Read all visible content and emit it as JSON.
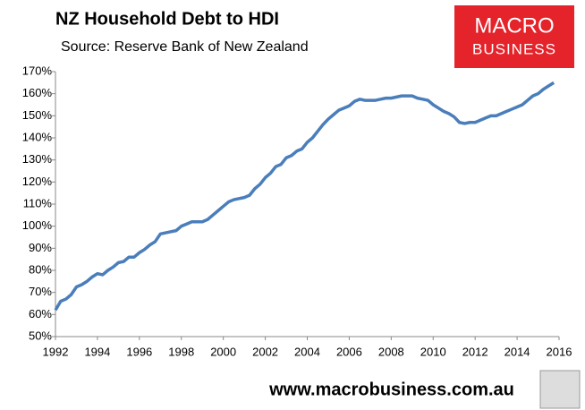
{
  "chart_data": {
    "type": "line",
    "title": "NZ Household Debt to HDI",
    "subtitle": "Source: Reserve Bank of New Zealand",
    "logo_text": [
      "MACRO",
      "BUSINESS"
    ],
    "footer": "www.macrobusiness.com.au",
    "x": [
      1992,
      1992.25,
      1992.5,
      1992.75,
      1993,
      1993.25,
      1993.5,
      1993.75,
      1994,
      1994.25,
      1994.5,
      1994.75,
      1995,
      1995.25,
      1995.5,
      1995.75,
      1996,
      1996.25,
      1996.5,
      1996.75,
      1997,
      1997.25,
      1997.5,
      1997.75,
      1998,
      1998.25,
      1998.5,
      1998.75,
      1999,
      1999.25,
      1999.5,
      1999.75,
      2000,
      2000.25,
      2000.5,
      2000.75,
      2001,
      2001.25,
      2001.5,
      2001.75,
      2002,
      2002.25,
      2002.5,
      2002.75,
      2003,
      2003.25,
      2003.5,
      2003.75,
      2004,
      2004.25,
      2004.5,
      2004.75,
      2005,
      2005.25,
      2005.5,
      2005.75,
      2006,
      2006.25,
      2006.5,
      2006.75,
      2007,
      2007.25,
      2007.5,
      2007.75,
      2008,
      2008.25,
      2008.5,
      2008.75,
      2009,
      2009.25,
      2009.5,
      2009.75,
      2010,
      2010.25,
      2010.5,
      2010.75,
      2011,
      2011.25,
      2011.5,
      2011.75,
      2012,
      2012.25,
      2012.5,
      2012.75,
      2013,
      2013.25,
      2013.5,
      2013.75,
      2014,
      2014.25,
      2014.5,
      2014.75,
      2015,
      2015.25,
      2015.5,
      2015.75
    ],
    "series": [
      {
        "color": "#4a7ebb",
        "values": [
          62,
          66,
          67,
          69,
          72.5,
          73.5,
          75,
          77,
          78.5,
          78,
          80,
          81.5,
          83.5,
          84,
          86,
          86,
          88,
          89.5,
          91.5,
          93,
          96.5,
          97,
          97.5,
          98,
          100,
          101,
          102,
          102,
          102,
          103,
          105,
          107,
          109,
          111,
          112,
          112.5,
          113,
          114,
          117,
          119,
          122,
          124,
          127,
          128,
          131,
          132,
          134,
          135,
          138,
          140,
          143,
          146,
          148.5,
          150.5,
          152.5,
          153.5,
          154.5,
          156.5,
          157.5,
          157,
          157,
          157,
          157.5,
          158,
          158,
          158.5,
          159,
          159,
          159,
          158,
          157.5,
          157,
          155,
          153.5,
          152,
          151,
          149.5,
          147,
          146.5,
          147,
          147,
          148,
          149,
          150,
          150,
          151,
          152,
          153,
          154,
          155,
          157,
          159,
          160,
          162,
          163.5,
          165
        ]
      }
    ],
    "xlim": [
      1992,
      2016
    ],
    "xticks": [
      1992,
      1994,
      1996,
      1998,
      2000,
      2002,
      2004,
      2006,
      2008,
      2010,
      2012,
      2014,
      2016
    ],
    "ylim": [
      50,
      170
    ],
    "yticks": [
      {
        "value": 50,
        "label": "50%"
      },
      {
        "value": 60,
        "label": "60%"
      },
      {
        "value": 70,
        "label": "70%"
      },
      {
        "value": 80,
        "label": "80%"
      },
      {
        "value": 90,
        "label": "90%"
      },
      {
        "value": 100,
        "label": "100%"
      },
      {
        "value": 110,
        "label": "110%"
      },
      {
        "value": 120,
        "label": "120%"
      },
      {
        "value": 130,
        "label": "130%"
      },
      {
        "value": 140,
        "label": "140%"
      },
      {
        "value": 150,
        "label": "150%"
      },
      {
        "value": 160,
        "label": "160%"
      },
      {
        "value": 170,
        "label": "170%"
      }
    ],
    "grid": false
  }
}
